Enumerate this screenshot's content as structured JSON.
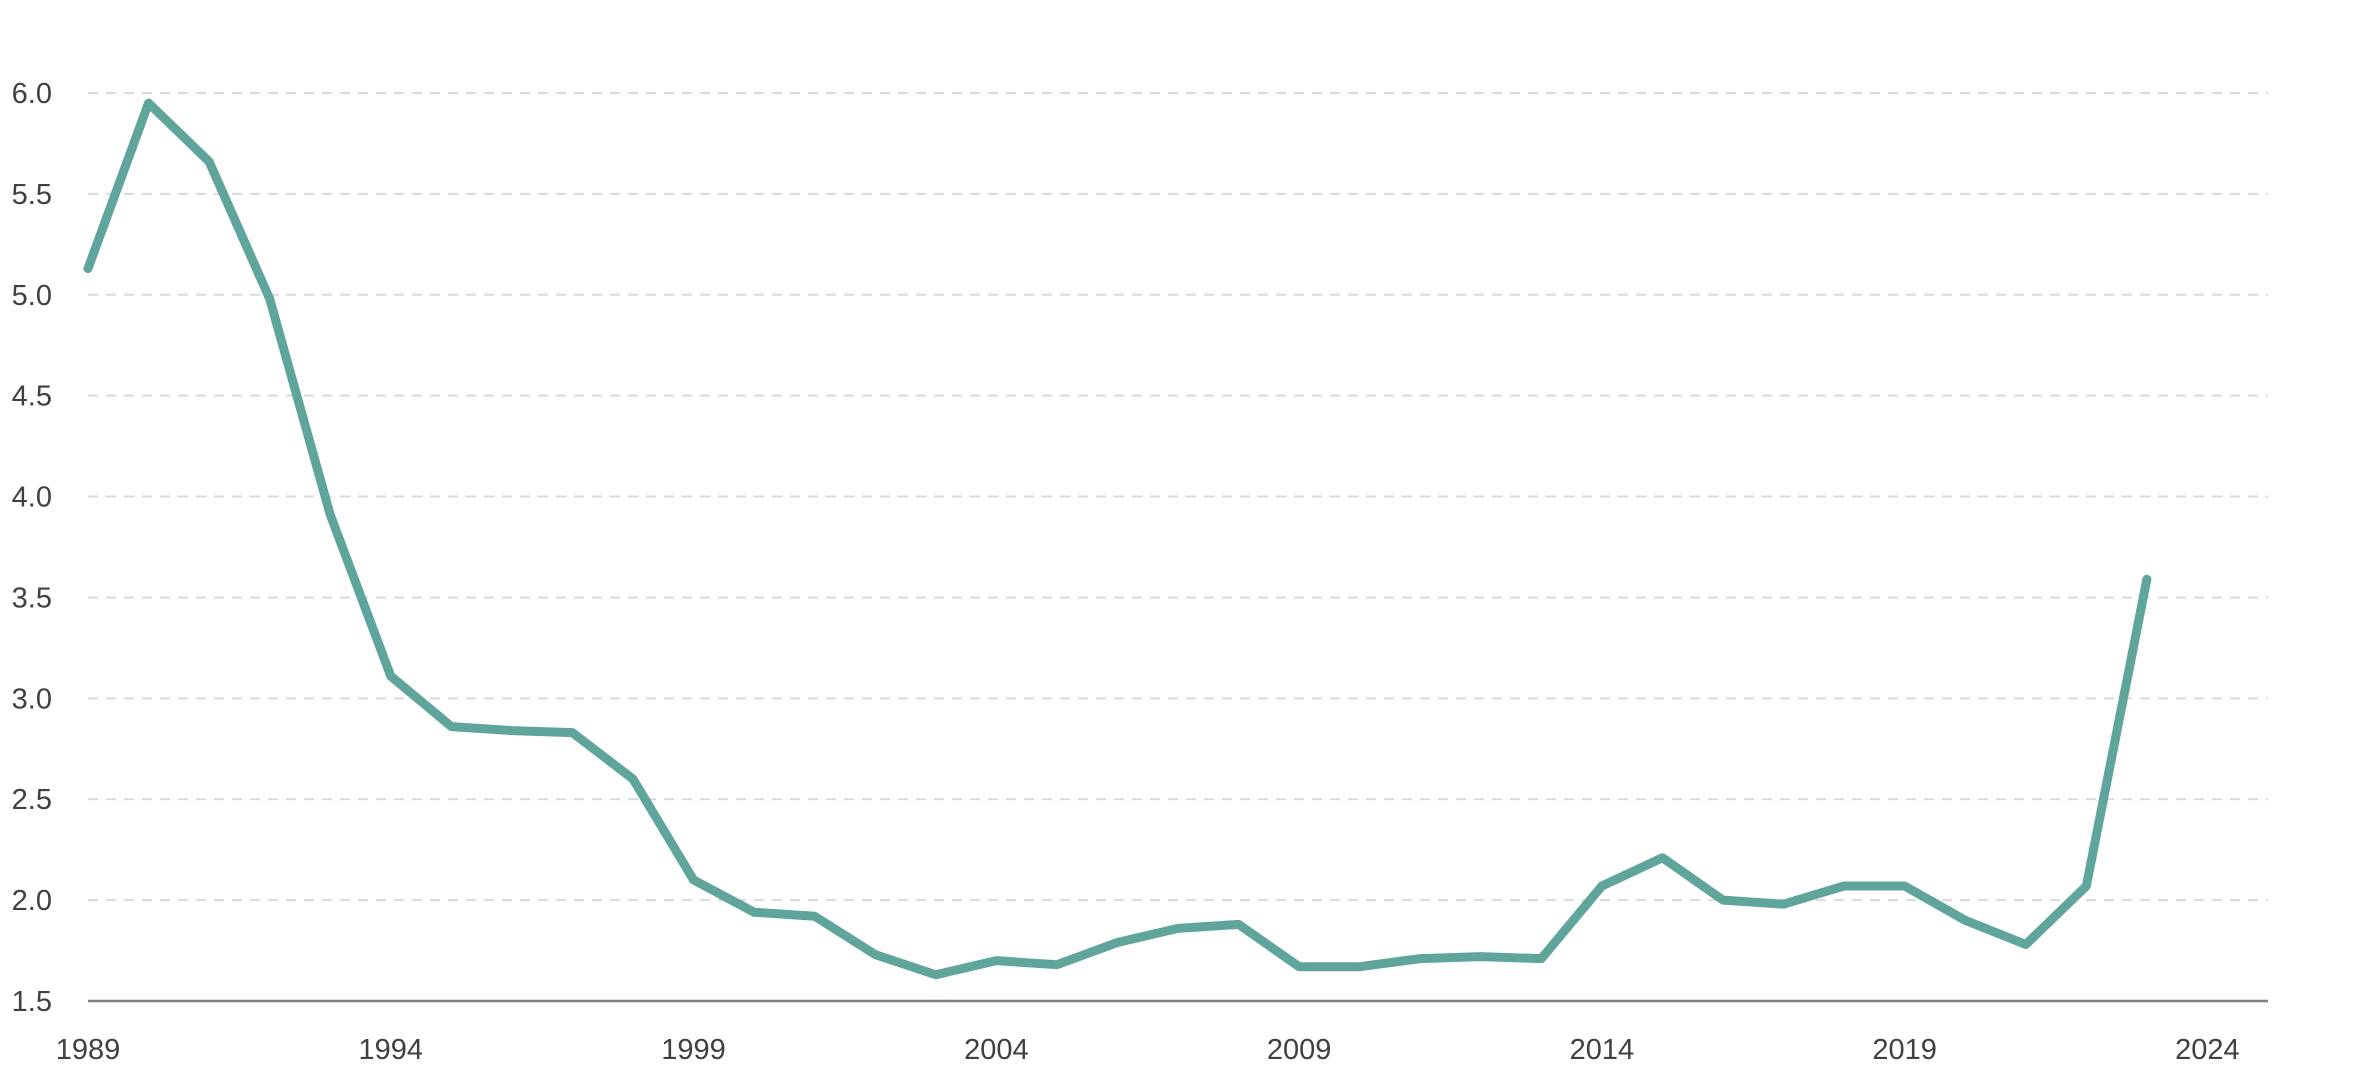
{
  "chart_data": {
    "type": "line",
    "title": "",
    "xlabel": "",
    "ylabel": "",
    "xlim": [
      1989,
      2025
    ],
    "ylim": [
      1.5,
      6.0
    ],
    "x_ticks": [
      1989,
      1994,
      1999,
      2004,
      2009,
      2014,
      2019,
      2024
    ],
    "y_ticks": [
      1.5,
      2.0,
      2.5,
      3.0,
      3.5,
      4.0,
      4.5,
      5.0,
      5.5,
      6.0
    ],
    "grid": true,
    "legend": "none",
    "series": [
      {
        "color": "#5fa59c",
        "x": [
          1989,
          1990,
          1991,
          1992,
          1993,
          1994,
          1995,
          1996,
          1997,
          1998,
          1999,
          2000,
          2001,
          2002,
          2003,
          2004,
          2005,
          2006,
          2007,
          2008,
          2009,
          2010,
          2011,
          2012,
          2013,
          2014,
          2015,
          2016,
          2017,
          2018,
          2019,
          2020,
          2021,
          2022,
          2023
        ],
        "values": [
          5.13,
          5.95,
          5.66,
          4.98,
          3.91,
          3.11,
          2.86,
          2.84,
          2.83,
          2.6,
          2.1,
          1.94,
          1.92,
          1.73,
          1.63,
          1.7,
          1.68,
          1.79,
          1.86,
          1.88,
          1.67,
          1.67,
          1.71,
          1.72,
          1.71,
          2.07,
          2.21,
          2.0,
          1.98,
          2.07,
          2.07,
          1.9,
          1.78,
          2.07,
          3.59
        ]
      }
    ]
  }
}
